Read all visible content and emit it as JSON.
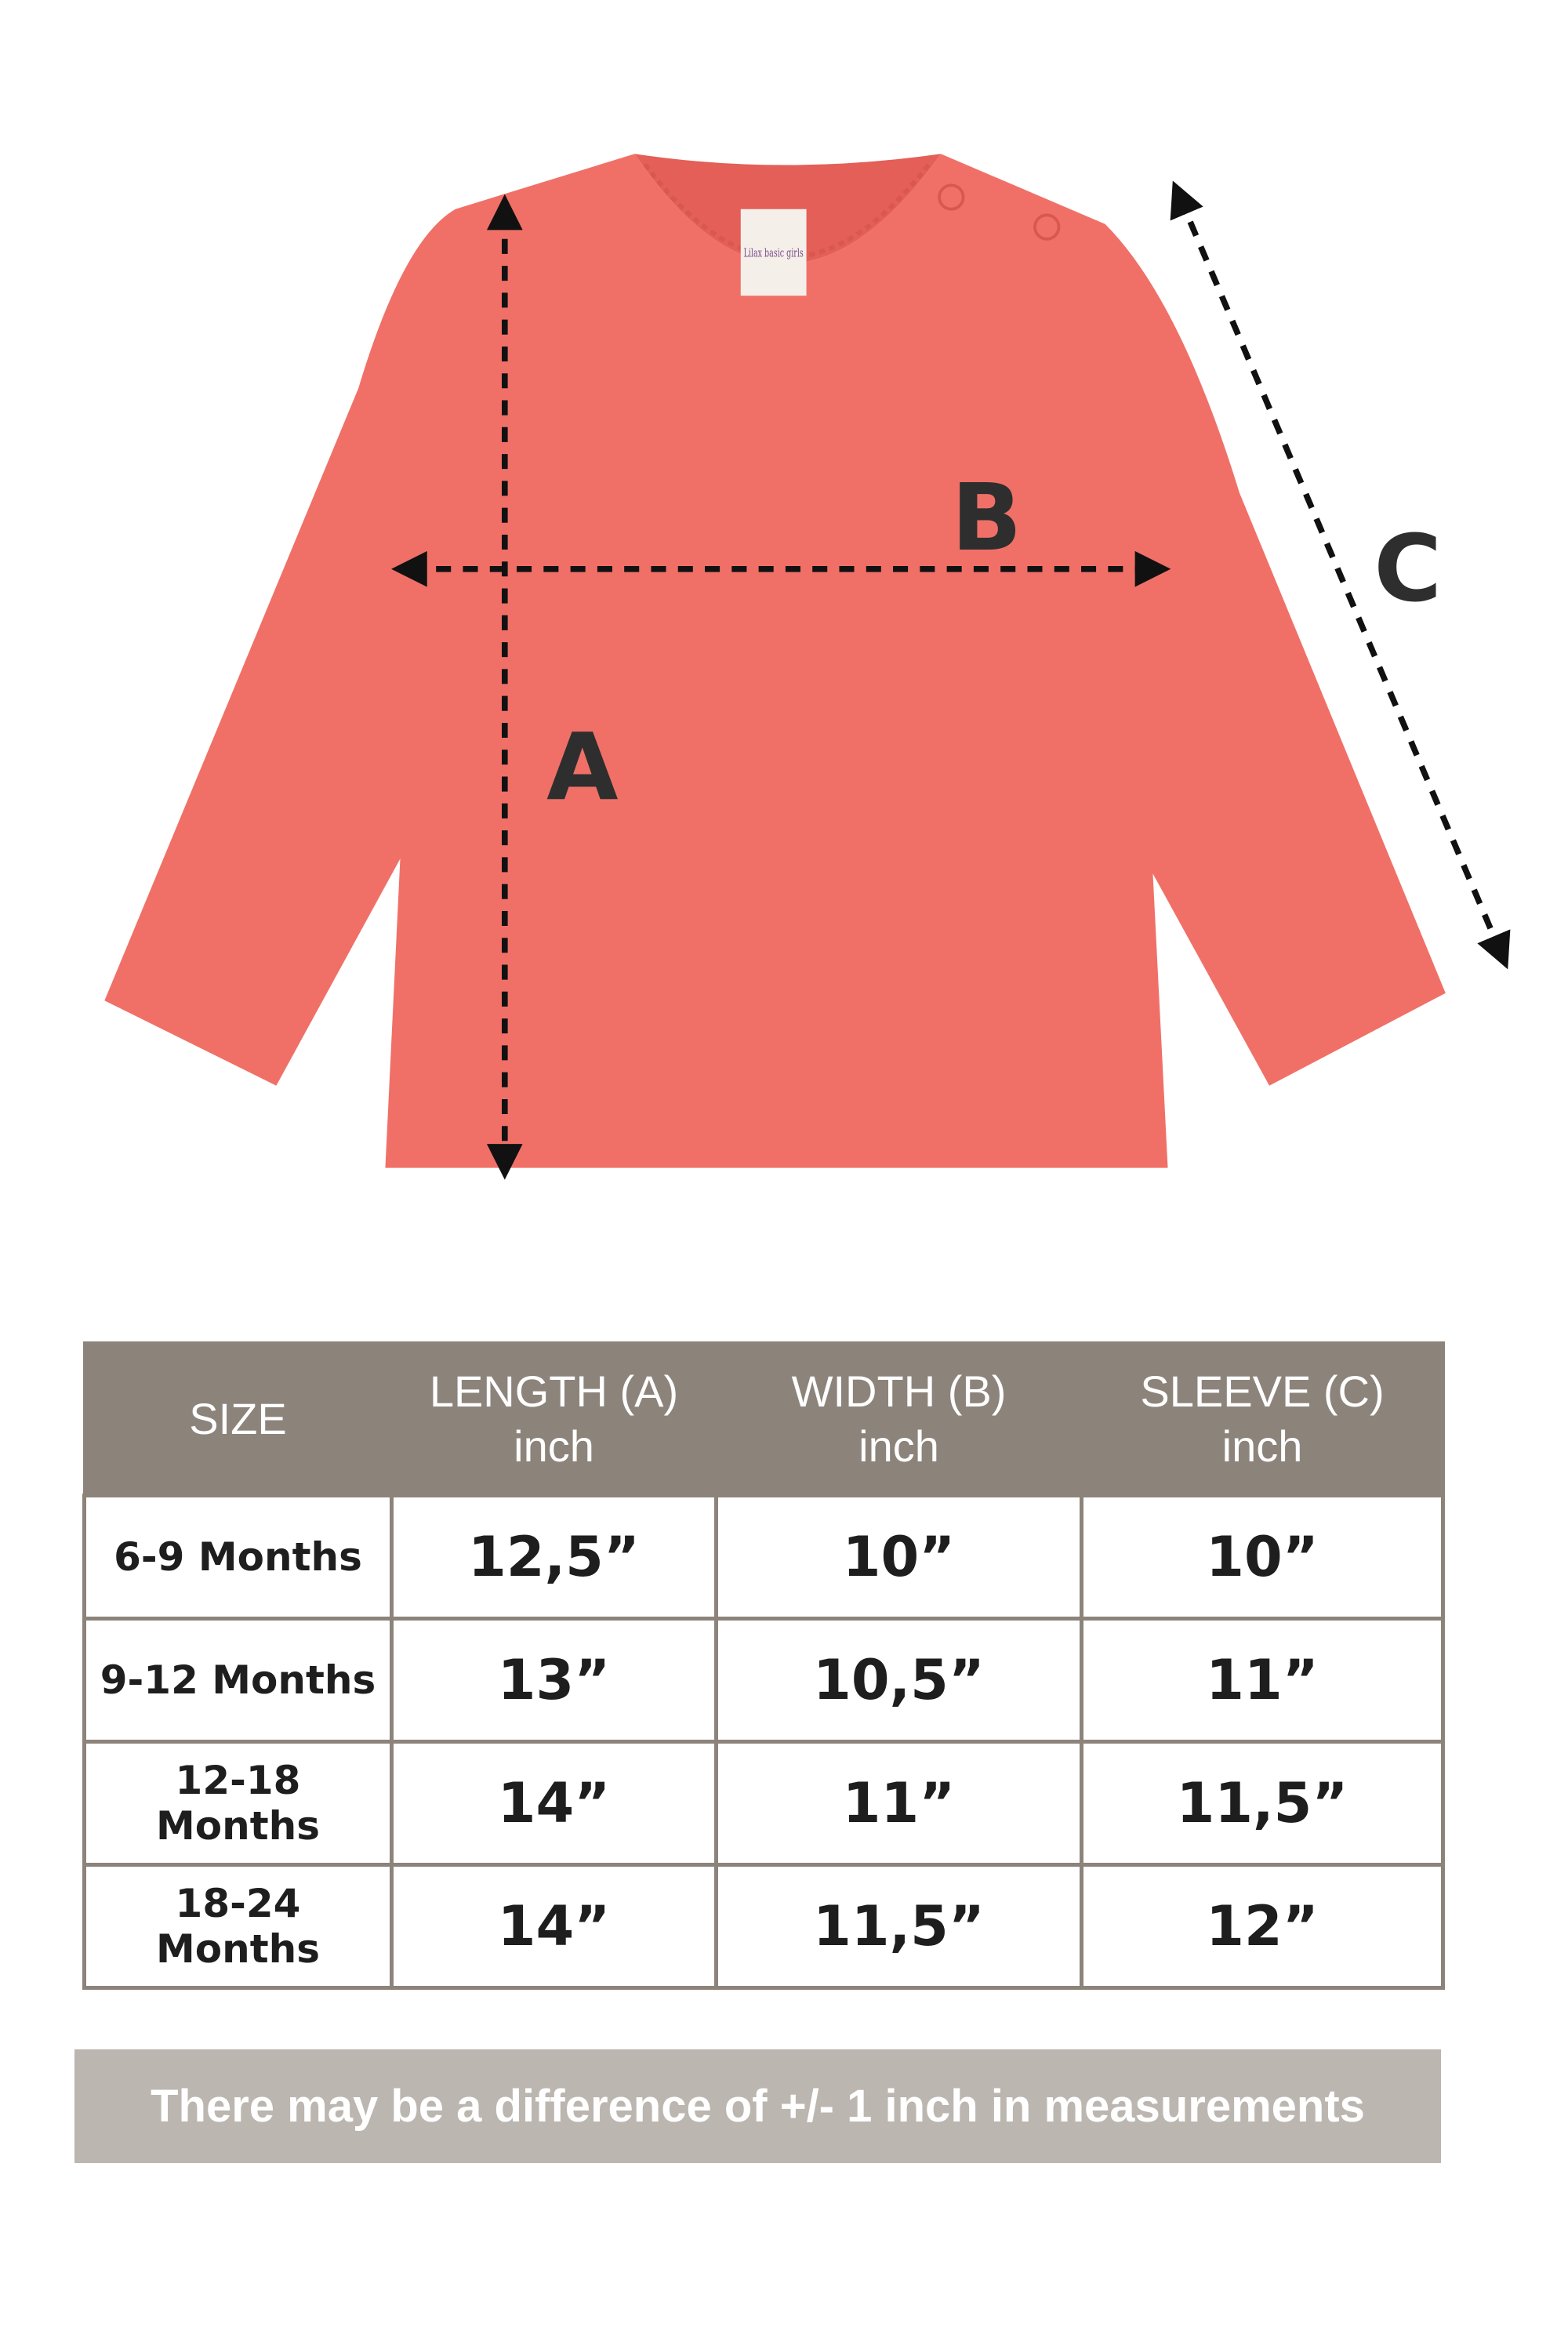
{
  "garment": {
    "color": "#f07067",
    "label_brand": "Lilax basic girls",
    "dimension_labels": {
      "a": "A",
      "b": "B",
      "c": "C"
    }
  },
  "table": {
    "header_color": "#8c837b",
    "headers": [
      {
        "title": "SIZE",
        "unit": ""
      },
      {
        "title": "LENGTH (A)",
        "unit": "inch"
      },
      {
        "title": "WIDTH (B)",
        "unit": "inch"
      },
      {
        "title": "SLEEVE (C)",
        "unit": "inch"
      }
    ],
    "rows": [
      [
        "6-9 Months",
        "12,5”",
        "10”",
        "10”"
      ],
      [
        "9-12 Months",
        "13”",
        "10,5”",
        "11”"
      ],
      [
        "12-18 Months",
        "14”",
        "11”",
        "11,5”"
      ],
      [
        "18-24 Months",
        "14”",
        "11,5”",
        "12”"
      ]
    ]
  },
  "note": {
    "text": "There may be a difference of +/- 1 inch in measurements",
    "color": "#bcb6b0"
  }
}
